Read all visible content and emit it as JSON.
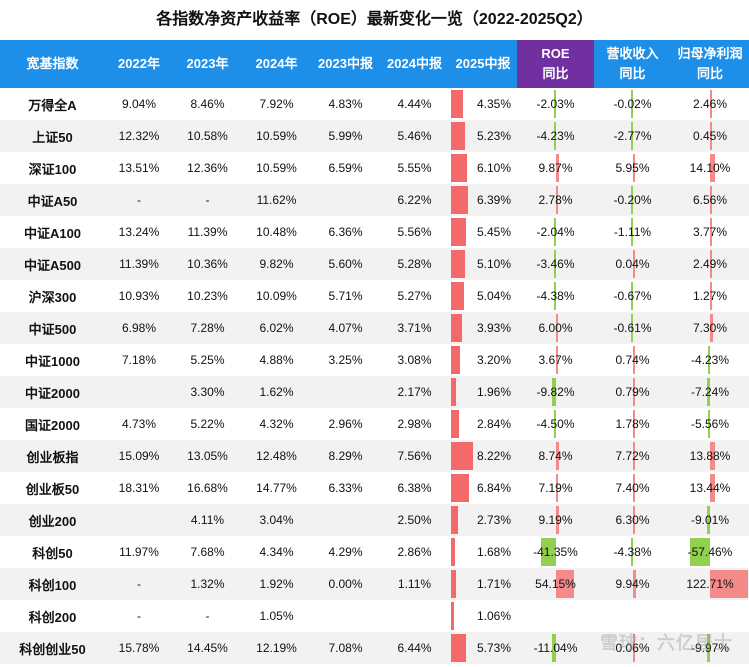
{
  "title": "各指数净资产收益率（ROE）最新变化一览（2022-2025Q2）",
  "headers": [
    "宽基指数",
    "2022年",
    "2023年",
    "2024年",
    "2023中报",
    "2024中报",
    "2025中报",
    "ROE\n同比",
    "营收收入\n同比",
    "归母净利润\n同比"
  ],
  "colors": {
    "header": "#1e8fe8",
    "accent_header": "#7030a0",
    "bar": "#f46a6a",
    "positive": "#f48a8a",
    "negative": "#92d050"
  },
  "rows": [
    {
      "name": "万得全A",
      "y2022": "9.04%",
      "y2023": "8.46%",
      "y2024": "7.92%",
      "h2023": "4.83%",
      "h2024": "4.44%",
      "h2025": "4.35%",
      "roe": "-2.03%",
      "rev": "-0.02%",
      "np": "2.46%",
      "v2025": 4.35,
      "vroe": -2.03,
      "vrev": -0.02,
      "vnp": 2.46
    },
    {
      "name": "上证50",
      "y2022": "12.32%",
      "y2023": "10.58%",
      "y2024": "10.59%",
      "h2023": "5.99%",
      "h2024": "5.46%",
      "h2025": "5.23%",
      "roe": "-4.23%",
      "rev": "-2.77%",
      "np": "0.45%",
      "v2025": 5.23,
      "vroe": -4.23,
      "vrev": -2.77,
      "vnp": 0.45
    },
    {
      "name": "深证100",
      "y2022": "13.51%",
      "y2023": "12.36%",
      "y2024": "10.59%",
      "h2023": "6.59%",
      "h2024": "5.55%",
      "h2025": "6.10%",
      "roe": "9.87%",
      "rev": "5.95%",
      "np": "14.10%",
      "v2025": 6.1,
      "vroe": 9.87,
      "vrev": 5.95,
      "vnp": 14.1
    },
    {
      "name": "中证A50",
      "y2022": "-",
      "y2023": "-",
      "y2024": "11.62%",
      "h2023": "",
      "h2024": "6.22%",
      "h2025": "6.39%",
      "roe": "2.78%",
      "rev": "-0.20%",
      "np": "6.56%",
      "v2025": 6.39,
      "vroe": 2.78,
      "vrev": -0.2,
      "vnp": 6.56
    },
    {
      "name": "中证A100",
      "y2022": "13.24%",
      "y2023": "11.39%",
      "y2024": "10.48%",
      "h2023": "6.36%",
      "h2024": "5.56%",
      "h2025": "5.45%",
      "roe": "-2.04%",
      "rev": "-1.11%",
      "np": "3.77%",
      "v2025": 5.45,
      "vroe": -2.04,
      "vrev": -1.11,
      "vnp": 3.77
    },
    {
      "name": "中证A500",
      "y2022": "11.39%",
      "y2023": "10.36%",
      "y2024": "9.82%",
      "h2023": "5.60%",
      "h2024": "5.28%",
      "h2025": "5.10%",
      "roe": "-3.46%",
      "rev": "0.04%",
      "np": "2.49%",
      "v2025": 5.1,
      "vroe": -3.46,
      "vrev": 0.04,
      "vnp": 2.49
    },
    {
      "name": "沪深300",
      "y2022": "10.93%",
      "y2023": "10.23%",
      "y2024": "10.09%",
      "h2023": "5.71%",
      "h2024": "5.27%",
      "h2025": "5.04%",
      "roe": "-4.38%",
      "rev": "-0.67%",
      "np": "1.27%",
      "v2025": 5.04,
      "vroe": -4.38,
      "vrev": -0.67,
      "vnp": 1.27
    },
    {
      "name": "中证500",
      "y2022": "6.98%",
      "y2023": "7.28%",
      "y2024": "6.02%",
      "h2023": "4.07%",
      "h2024": "3.71%",
      "h2025": "3.93%",
      "roe": "6.00%",
      "rev": "-0.61%",
      "np": "7.30%",
      "v2025": 3.93,
      "vroe": 6.0,
      "vrev": -0.61,
      "vnp": 7.3
    },
    {
      "name": "中证1000",
      "y2022": "7.18%",
      "y2023": "5.25%",
      "y2024": "4.88%",
      "h2023": "3.25%",
      "h2024": "3.08%",
      "h2025": "3.20%",
      "roe": "3.67%",
      "rev": "0.74%",
      "np": "-4.23%",
      "v2025": 3.2,
      "vroe": 3.67,
      "vrev": 0.74,
      "vnp": -4.23
    },
    {
      "name": "中证2000",
      "y2022": "",
      "y2023": "3.30%",
      "y2024": "1.62%",
      "h2023": "",
      "h2024": "2.17%",
      "h2025": "1.96%",
      "roe": "-9.82%",
      "rev": "0.79%",
      "np": "-7.24%",
      "v2025": 1.96,
      "vroe": -9.82,
      "vrev": 0.79,
      "vnp": -7.24
    },
    {
      "name": "国证2000",
      "y2022": "4.73%",
      "y2023": "5.22%",
      "y2024": "4.32%",
      "h2023": "2.96%",
      "h2024": "2.98%",
      "h2025": "2.84%",
      "roe": "-4.50%",
      "rev": "1.78%",
      "np": "-5.56%",
      "v2025": 2.84,
      "vroe": -4.5,
      "vrev": 1.78,
      "vnp": -5.56
    },
    {
      "name": "创业板指",
      "y2022": "15.09%",
      "y2023": "13.05%",
      "y2024": "12.48%",
      "h2023": "8.29%",
      "h2024": "7.56%",
      "h2025": "8.22%",
      "roe": "8.74%",
      "rev": "7.72%",
      "np": "13.88%",
      "v2025": 8.22,
      "vroe": 8.74,
      "vrev": 7.72,
      "vnp": 13.88
    },
    {
      "name": "创业板50",
      "y2022": "18.31%",
      "y2023": "16.68%",
      "y2024": "14.77%",
      "h2023": "6.33%",
      "h2024": "6.38%",
      "h2025": "6.84%",
      "roe": "7.19%",
      "rev": "7.40%",
      "np": "13.44%",
      "v2025": 6.84,
      "vroe": 7.19,
      "vrev": 7.4,
      "vnp": 13.44
    },
    {
      "name": "创业200",
      "y2022": "",
      "y2023": "4.11%",
      "y2024": "3.04%",
      "h2023": "",
      "h2024": "2.50%",
      "h2025": "2.73%",
      "roe": "9.19%",
      "rev": "6.30%",
      "np": "-9.01%",
      "v2025": 2.73,
      "vroe": 9.19,
      "vrev": 6.3,
      "vnp": -9.01
    },
    {
      "name": "科创50",
      "y2022": "11.97%",
      "y2023": "7.68%",
      "y2024": "4.34%",
      "h2023": "4.29%",
      "h2024": "2.86%",
      "h2025": "1.68%",
      "roe": "-41.35%",
      "rev": "-4.38%",
      "np": "-57.46%",
      "v2025": 1.68,
      "vroe": -41.35,
      "vrev": -4.38,
      "vnp": -57.46
    },
    {
      "name": "科创100",
      "y2022": "-",
      "y2023": "1.32%",
      "y2024": "1.92%",
      "h2023": "0.00%",
      "h2024": "1.11%",
      "h2025": "1.71%",
      "roe": "54.15%",
      "rev": "9.94%",
      "np": "122.71%",
      "v2025": 1.71,
      "vroe": 54.15,
      "vrev": 9.94,
      "vnp": 122.71
    },
    {
      "name": "科创200",
      "y2022": "-",
      "y2023": "-",
      "y2024": "1.05%",
      "h2023": "",
      "h2024": "",
      "h2025": "1.06%",
      "roe": "",
      "rev": "",
      "np": "",
      "v2025": 1.06,
      "vroe": null,
      "vrev": null,
      "vnp": null
    },
    {
      "name": "科创创业50",
      "y2022": "15.78%",
      "y2023": "14.45%",
      "y2024": "12.19%",
      "h2023": "7.08%",
      "h2024": "6.44%",
      "h2025": "5.73%",
      "roe": "-11.04%",
      "rev": "0.06%",
      "np": "-9.97%",
      "v2025": 5.73,
      "vroe": -11.04,
      "vrev": 0.06,
      "vnp": -9.97
    }
  ],
  "watermark": "雪球：六亿居士"
}
